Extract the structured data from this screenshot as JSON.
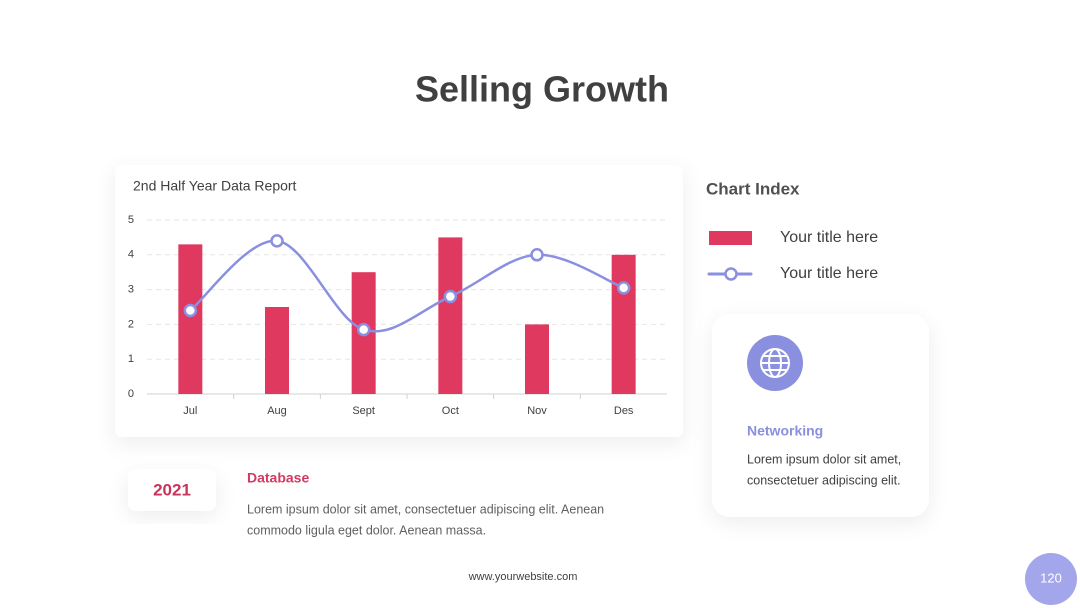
{
  "chart_data": {
    "type": "bar_line",
    "title": "2nd Half Year Data Report",
    "categories": [
      "Jul",
      "Aug",
      "Sept",
      "Oct",
      "Nov",
      "Des"
    ],
    "series": [
      {
        "name": "Your title here",
        "kind": "bar",
        "color": "#e0395f",
        "values": [
          4.3,
          2.5,
          3.5,
          4.5,
          2,
          4
        ]
      },
      {
        "name": "Your title here",
        "kind": "line",
        "color": "#8a8fe0",
        "values": [
          2.4,
          4.4,
          1.85,
          2.8,
          4.0,
          3.05
        ]
      }
    ],
    "ylim": [
      0,
      5
    ],
    "yticks": [
      0,
      1,
      2,
      3,
      4,
      5
    ],
    "grid": true,
    "legend_title": "Chart Index"
  },
  "slide": {
    "title": "Selling Growth",
    "year": "2021",
    "db_title": "Database",
    "db_text": [
      "Lorem ipsum dolor sit amet, consectetuer adipiscing elit. Aenean",
      "commodo ligula eget dolor. Aenean massa."
    ],
    "card_title": "Networking",
    "card_text": [
      "Lorem ipsum dolor sit amet,",
      "consectetuer adipiscing elit."
    ],
    "website": "www.yourwebsite.com",
    "page_number": "120"
  }
}
